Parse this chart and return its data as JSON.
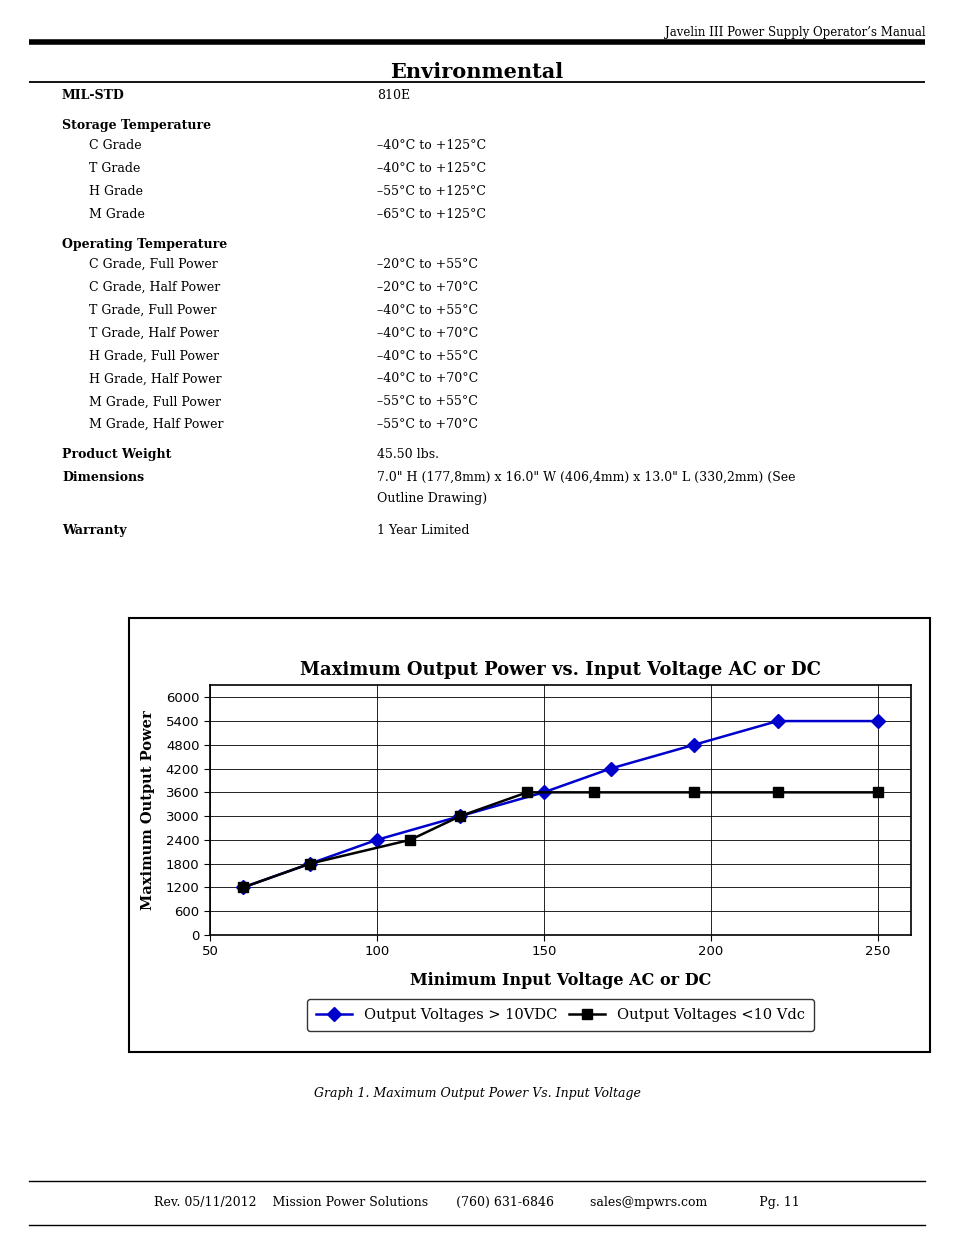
{
  "page_header": "Javelin III Power Supply Operator’s Manual",
  "section_title": "Environmental",
  "table_rows": [
    {
      "label": "MIL-STD",
      "bold": true,
      "indent": 0,
      "value": "810E",
      "spacer_before": false
    },
    {
      "label": "Storage Temperature",
      "bold": true,
      "indent": 0,
      "value": "",
      "spacer_before": true
    },
    {
      "label": "C Grade",
      "bold": false,
      "indent": 1,
      "value": "–40°C to +125°C",
      "spacer_before": false
    },
    {
      "label": "T Grade",
      "bold": false,
      "indent": 1,
      "value": "–40°C to +125°C",
      "spacer_before": false
    },
    {
      "label": "H Grade",
      "bold": false,
      "indent": 1,
      "value": "–55°C to +125°C",
      "spacer_before": false
    },
    {
      "label": "M Grade",
      "bold": false,
      "indent": 1,
      "value": "–65°C to +125°C",
      "spacer_before": false
    },
    {
      "label": "Operating Temperature",
      "bold": true,
      "indent": 0,
      "value": "",
      "spacer_before": true
    },
    {
      "label": "C Grade, Full Power",
      "bold": false,
      "indent": 1,
      "value": "–20°C to +55°C",
      "spacer_before": false
    },
    {
      "label": "C Grade, Half Power",
      "bold": false,
      "indent": 1,
      "value": "–20°C to +70°C",
      "spacer_before": false
    },
    {
      "label": "T Grade, Full Power",
      "bold": false,
      "indent": 1,
      "value": "–40°C to +55°C",
      "spacer_before": false
    },
    {
      "label": "T Grade, Half Power",
      "bold": false,
      "indent": 1,
      "value": "–40°C to +70°C",
      "spacer_before": false
    },
    {
      "label": "H Grade, Full Power",
      "bold": false,
      "indent": 1,
      "value": "–40°C to +55°C",
      "spacer_before": false
    },
    {
      "label": "H Grade, Half Power",
      "bold": false,
      "indent": 1,
      "value": "–40°C to +70°C",
      "spacer_before": false
    },
    {
      "label": "M Grade, Full Power",
      "bold": false,
      "indent": 1,
      "value": "–55°C to +55°C",
      "spacer_before": false
    },
    {
      "label": "M Grade, Half Power",
      "bold": false,
      "indent": 1,
      "value": "–55°C to +70°C",
      "spacer_before": false
    },
    {
      "label": "Product Weight",
      "bold": true,
      "indent": 0,
      "value": "45.50 lbs.",
      "spacer_before": true
    },
    {
      "label": "Dimensions",
      "bold": true,
      "indent": 0,
      "value": "7.0\" H (177,8mm) x 16.0\" W (406,4mm) x 13.0\" L (330,2mm) (See\nOutline Drawing)",
      "spacer_before": false
    },
    {
      "label": "Warranty",
      "bold": true,
      "indent": 0,
      "value": "1 Year Limited",
      "spacer_before": true
    }
  ],
  "chart_title": "Maximum Output Power vs. Input Voltage AC or DC",
  "chart_xlabel": "Minimum Input Voltage AC or DC",
  "chart_ylabel": "Maximum Output Power",
  "chart_xlim": [
    50,
    260
  ],
  "chart_ylim": [
    0,
    6300
  ],
  "chart_xticks": [
    50,
    100,
    150,
    200,
    250
  ],
  "chart_yticks": [
    0,
    600,
    1200,
    1800,
    2400,
    3000,
    3600,
    4200,
    4800,
    5400,
    6000
  ],
  "series1_x": [
    60,
    80,
    100,
    125,
    150,
    170,
    195,
    220,
    250
  ],
  "series1_y": [
    1200,
    1800,
    2400,
    3000,
    3600,
    4200,
    4800,
    5400,
    5400
  ],
  "series1_color": "#0000cc",
  "series1_label": "Output Voltages > 10VDC",
  "series2_x": [
    60,
    80,
    110,
    125,
    145,
    165,
    195,
    220,
    250
  ],
  "series2_y": [
    1200,
    1800,
    2400,
    3000,
    3600,
    3600,
    3600,
    3600,
    3600
  ],
  "series2_color": "#000000",
  "series2_label": "Output Voltages <10 Vdc",
  "graph_caption": "Graph 1. Maximum Output Power Vs. Input Voltage",
  "footer_text": "Rev. 05/11/2012    Mission Power Solutions       (760) 631-6846         sales@mpwrs.com             Pg. 11",
  "bg_color": "#ffffff",
  "line_color": "#000000"
}
